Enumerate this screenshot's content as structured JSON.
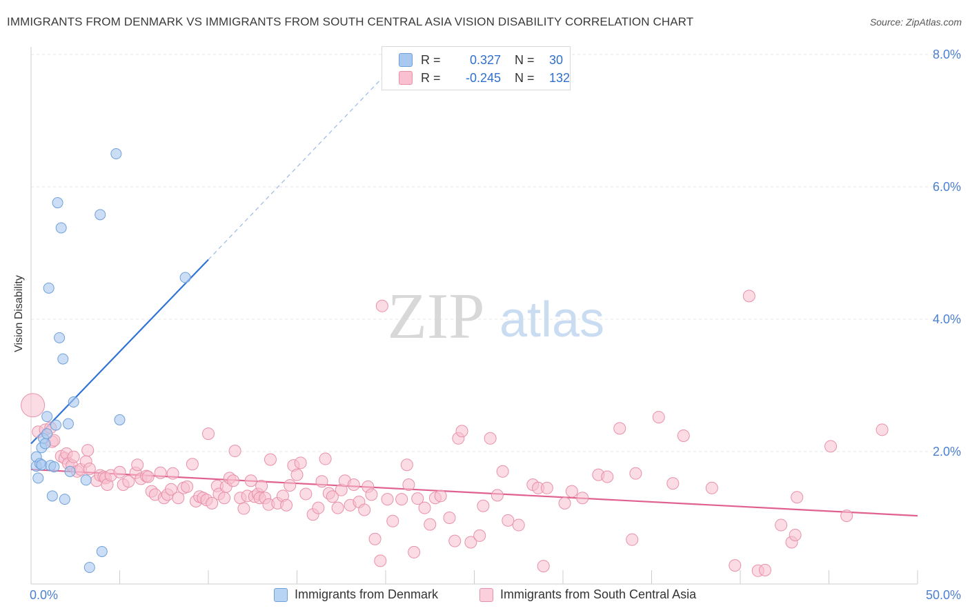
{
  "title": "IMMIGRANTS FROM DENMARK VS IMMIGRANTS FROM SOUTH CENTRAL ASIA VISION DISABILITY CORRELATION CHART",
  "source": "Source: ZipAtlas.com",
  "watermark": {
    "zip": "ZIP",
    "atlas": "atlas"
  },
  "legend": {
    "rows": [
      {
        "r_label": "R =",
        "r_value": "0.327",
        "n_label": "N =",
        "n_value": "30",
        "color": "#a8c8f0",
        "stroke": "#6f9fd8"
      },
      {
        "r_label": "R =",
        "r_value": "-0.245",
        "n_label": "N =",
        "n_value": "132",
        "color": "#f8c0d0",
        "stroke": "#e890a8"
      }
    ]
  },
  "bottom_legend": {
    "denmark": "Immigrants from Denmark",
    "sca": "Immigrants from South Central Asia"
  },
  "chart_data": {
    "type": "scatter",
    "title": "IMMIGRANTS FROM DENMARK VS IMMIGRANTS FROM SOUTH CENTRAL ASIA VISION DISABILITY CORRELATION CHART",
    "xlabel": "",
    "ylabel": "Vision Disability",
    "xlim": [
      0,
      50
    ],
    "ylim": [
      0,
      8.0
    ],
    "x_tick_labels": [
      "0.0%",
      "50.0%"
    ],
    "y_tick_labels": [
      "2.0%",
      "4.0%",
      "6.0%",
      "8.0%"
    ],
    "y_ticks": [
      2.0,
      4.0,
      6.0,
      8.0
    ],
    "grid": true,
    "legend_position": "top-center",
    "series": [
      {
        "name": "Immigrants from Denmark",
        "color": "#6f9fd8",
        "fill": "#a8c8f0",
        "points": [
          [
            0.3,
            1.78
          ],
          [
            0.3,
            1.92
          ],
          [
            0.4,
            1.6
          ],
          [
            0.5,
            1.82
          ],
          [
            0.6,
            1.8
          ],
          [
            0.6,
            2.06
          ],
          [
            0.7,
            2.2
          ],
          [
            0.8,
            2.12
          ],
          [
            0.9,
            2.53
          ],
          [
            0.9,
            2.27
          ],
          [
            1.0,
            4.47
          ],
          [
            1.1,
            1.79
          ],
          [
            1.2,
            1.33
          ],
          [
            1.3,
            1.77
          ],
          [
            1.4,
            2.4
          ],
          [
            1.5,
            5.76
          ],
          [
            1.6,
            3.72
          ],
          [
            1.7,
            5.38
          ],
          [
            1.8,
            3.4
          ],
          [
            1.9,
            1.28
          ],
          [
            2.1,
            2.42
          ],
          [
            2.2,
            1.7
          ],
          [
            2.4,
            2.75
          ],
          [
            3.1,
            1.57
          ],
          [
            3.3,
            0.25
          ],
          [
            3.9,
            5.58
          ],
          [
            4.0,
            0.49
          ],
          [
            4.8,
            6.5
          ],
          [
            5.0,
            2.48
          ],
          [
            8.7,
            4.63
          ]
        ],
        "trend": {
          "x": [
            0,
            10
          ],
          "y": [
            2.12,
            4.9
          ],
          "extended_to": [
            20,
            7.7
          ]
        }
      },
      {
        "name": "Immigrants from South Central Asia",
        "color": "#e890a8",
        "fill": "#f8c0d0",
        "points": [
          [
            0.1,
            2.7
          ],
          [
            0.4,
            2.3
          ],
          [
            0.8,
            2.33
          ],
          [
            1.1,
            2.36
          ],
          [
            1.2,
            2.15
          ],
          [
            1.3,
            2.17
          ],
          [
            1.7,
            1.93
          ],
          [
            1.9,
            1.9
          ],
          [
            2.0,
            1.97
          ],
          [
            2.1,
            1.82
          ],
          [
            2.3,
            1.79
          ],
          [
            2.4,
            1.92
          ],
          [
            2.6,
            1.7
          ],
          [
            2.8,
            1.73
          ],
          [
            3.1,
            1.85
          ],
          [
            3.2,
            2.02
          ],
          [
            3.3,
            1.74
          ],
          [
            3.7,
            1.56
          ],
          [
            3.9,
            1.64
          ],
          [
            4.1,
            1.62
          ],
          [
            4.2,
            1.6
          ],
          [
            4.3,
            1.5
          ],
          [
            4.5,
            1.64
          ],
          [
            5.0,
            1.69
          ],
          [
            5.2,
            1.5
          ],
          [
            5.5,
            1.55
          ],
          [
            5.9,
            1.68
          ],
          [
            6.0,
            1.8
          ],
          [
            6.2,
            1.59
          ],
          [
            6.5,
            1.63
          ],
          [
            6.6,
            1.62
          ],
          [
            6.8,
            1.4
          ],
          [
            7.0,
            1.35
          ],
          [
            7.3,
            1.68
          ],
          [
            7.5,
            1.3
          ],
          [
            7.7,
            1.35
          ],
          [
            7.9,
            1.43
          ],
          [
            8.0,
            1.67
          ],
          [
            8.3,
            1.3
          ],
          [
            8.6,
            1.45
          ],
          [
            8.8,
            1.47
          ],
          [
            9.1,
            1.81
          ],
          [
            9.3,
            1.25
          ],
          [
            9.5,
            1.32
          ],
          [
            9.7,
            1.3
          ],
          [
            9.9,
            1.27
          ],
          [
            10.0,
            2.27
          ],
          [
            10.2,
            1.22
          ],
          [
            10.5,
            1.48
          ],
          [
            10.6,
            1.36
          ],
          [
            10.9,
            1.3
          ],
          [
            11.0,
            1.47
          ],
          [
            11.2,
            1.6
          ],
          [
            11.4,
            1.56
          ],
          [
            11.5,
            2.01
          ],
          [
            11.8,
            1.3
          ],
          [
            12.0,
            1.14
          ],
          [
            12.2,
            1.33
          ],
          [
            12.4,
            1.56
          ],
          [
            12.6,
            1.32
          ],
          [
            12.8,
            1.36
          ],
          [
            12.9,
            1.3
          ],
          [
            13.0,
            1.48
          ],
          [
            13.2,
            1.3
          ],
          [
            13.4,
            1.2
          ],
          [
            13.5,
            1.88
          ],
          [
            13.9,
            1.22
          ],
          [
            14.2,
            1.33
          ],
          [
            14.4,
            1.19
          ],
          [
            14.6,
            1.49
          ],
          [
            14.8,
            1.79
          ],
          [
            15.0,
            1.65
          ],
          [
            15.2,
            1.83
          ],
          [
            15.5,
            1.36
          ],
          [
            15.9,
            1.05
          ],
          [
            16.2,
            1.15
          ],
          [
            16.4,
            1.55
          ],
          [
            16.6,
            1.89
          ],
          [
            16.8,
            1.37
          ],
          [
            17.0,
            1.32
          ],
          [
            17.3,
            1.15
          ],
          [
            17.5,
            1.42
          ],
          [
            17.7,
            1.56
          ],
          [
            18.0,
            1.19
          ],
          [
            18.2,
            1.5
          ],
          [
            18.5,
            1.24
          ],
          [
            18.8,
            1.12
          ],
          [
            19.0,
            1.47
          ],
          [
            19.2,
            1.35
          ],
          [
            19.4,
            0.68
          ],
          [
            19.7,
            0.35
          ],
          [
            19.8,
            4.2
          ],
          [
            20.1,
            1.28
          ],
          [
            20.4,
            0.95
          ],
          [
            20.9,
            1.28
          ],
          [
            21.2,
            1.8
          ],
          [
            21.3,
            1.5
          ],
          [
            21.6,
            0.48
          ],
          [
            21.8,
            1.29
          ],
          [
            22.2,
            1.15
          ],
          [
            22.5,
            0.9
          ],
          [
            22.8,
            1.3
          ],
          [
            23.1,
            1.33
          ],
          [
            23.6,
            1.0
          ],
          [
            23.9,
            0.65
          ],
          [
            24.1,
            2.2
          ],
          [
            24.3,
            2.31
          ],
          [
            24.8,
            0.63
          ],
          [
            25.3,
            0.73
          ],
          [
            25.5,
            1.18
          ],
          [
            25.9,
            2.2
          ],
          [
            26.3,
            1.34
          ],
          [
            26.6,
            1.7
          ],
          [
            26.9,
            0.96
          ],
          [
            27.5,
            0.89
          ],
          [
            28.3,
            1.5
          ],
          [
            28.6,
            1.45
          ],
          [
            28.9,
            0.27
          ],
          [
            29.1,
            1.45
          ],
          [
            30.1,
            1.22
          ],
          [
            30.5,
            1.4
          ],
          [
            31.1,
            1.3
          ],
          [
            32.0,
            1.65
          ],
          [
            32.5,
            1.62
          ],
          [
            33.2,
            2.35
          ],
          [
            33.9,
            0.67
          ],
          [
            34.1,
            1.67
          ],
          [
            35.4,
            2.52
          ],
          [
            36.2,
            1.52
          ],
          [
            36.8,
            2.24
          ],
          [
            38.4,
            1.45
          ],
          [
            39.7,
            0.28
          ],
          [
            40.5,
            4.35
          ],
          [
            41.0,
            0.2
          ],
          [
            41.4,
            0.21
          ],
          [
            42.3,
            0.89
          ],
          [
            42.9,
            0.63
          ],
          [
            43.1,
            0.74
          ],
          [
            43.2,
            1.31
          ],
          [
            45.1,
            2.08
          ],
          [
            46.0,
            1.03
          ],
          [
            48.0,
            2.33
          ]
        ],
        "trend": {
          "x": [
            0,
            50
          ],
          "y": [
            1.73,
            1.03
          ]
        }
      }
    ]
  }
}
